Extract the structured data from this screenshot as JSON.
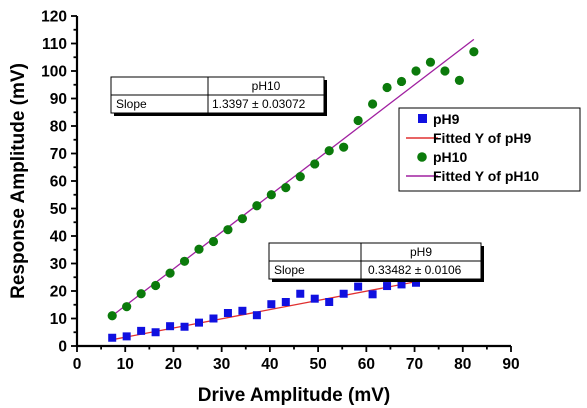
{
  "chart_data": {
    "type": "scatter",
    "title": "",
    "xlabel": "Drive Amplitude (mV)",
    "ylabel": "Response Amplitude (mV)",
    "xlim": [
      0,
      90
    ],
    "ylim": [
      0,
      120
    ],
    "xticks": [
      "0",
      "10",
      "20",
      "30",
      "40",
      "50",
      "60",
      "70",
      "80",
      "90"
    ],
    "yticks": [
      "0",
      "10",
      "20",
      "30",
      "40",
      "50",
      "60",
      "70",
      "80",
      "90",
      "100",
      "110",
      "120"
    ],
    "grid": false,
    "legend_position": "right-middle",
    "series": [
      {
        "name": "pH9",
        "kind": "points",
        "marker": "square",
        "color": "#1010e0",
        "x": [
          7.3,
          10.3,
          13.3,
          16.3,
          19.3,
          22.3,
          25.3,
          28.3,
          31.3,
          34.3,
          37.3,
          40.3,
          43.3,
          46.3,
          49.3,
          52.3,
          55.3,
          58.3,
          61.3,
          64.3,
          67.3,
          70.3,
          73.3,
          76.3,
          79.3,
          82.3
        ],
        "y": [
          3,
          3.5,
          5.5,
          5,
          7.2,
          7,
          8.5,
          10,
          12,
          12.8,
          11.2,
          15.2,
          16,
          19,
          17.2,
          16,
          19,
          21.6,
          18.8,
          21.8,
          22.4,
          23,
          25,
          27.6,
          28.2,
          27.2
        ]
      },
      {
        "name": "Fitted Y of pH9",
        "kind": "line",
        "color": "#e03030",
        "x": [
          7.3,
          82.3
        ],
        "y": [
          2.3,
          27.4
        ]
      },
      {
        "name": "pH10",
        "kind": "points",
        "marker": "circle",
        "color": "#0b7a0b",
        "x": [
          7.3,
          10.3,
          13.3,
          16.3,
          19.3,
          22.3,
          25.3,
          28.3,
          31.3,
          34.3,
          37.3,
          40.3,
          43.3,
          46.3,
          49.3,
          52.3,
          55.3,
          58.3,
          61.3,
          64.3,
          67.3,
          70.3,
          73.3,
          76.3,
          79.3,
          82.3
        ],
        "y": [
          11,
          14.3,
          19,
          22,
          26.5,
          30.8,
          35.2,
          38,
          42.3,
          46.3,
          51,
          55,
          57.6,
          61.6,
          66.2,
          71,
          72.3,
          82,
          88,
          94,
          96.2,
          100,
          103.2,
          100,
          96.6,
          107
        ]
      },
      {
        "name": "Fitted Y of pH10",
        "kind": "line",
        "color": "#a020a0",
        "x": [
          7.3,
          82.3
        ],
        "y": [
          11.0,
          111.5
        ]
      }
    ],
    "tables": [
      {
        "header": "pH10",
        "row_label": "Slope",
        "row_value": "1.3397 ± 0.03072"
      },
      {
        "header": "pH9",
        "row_label": "Slope",
        "row_value": "0.33482 ± 0.0106"
      }
    ]
  }
}
